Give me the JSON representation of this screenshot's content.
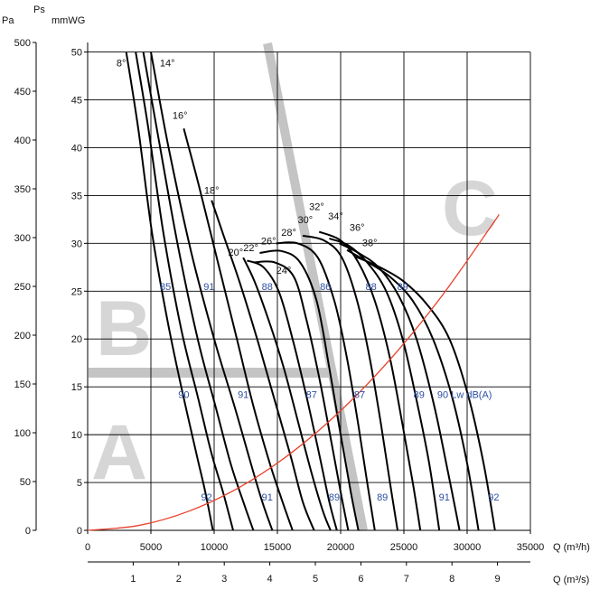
{
  "chart_data": {
    "type": "line",
    "title": "",
    "xlabel": "Q (m³/h)",
    "xlabel2": "Q (m³/s)",
    "ylabel_left": "Pa",
    "ylabel_ps": "Ps",
    "ylabel_right": "mmWG",
    "xlim": [
      0,
      35000
    ],
    "ylim_mmwg": [
      0,
      51
    ],
    "x_ticks": [
      "0",
      "5000",
      "10000",
      "15000",
      "20000",
      "25000",
      "30000",
      "35000"
    ],
    "x2_ticks": [
      "1",
      "2",
      "3",
      "4",
      "5",
      "6",
      "7",
      "8",
      "9"
    ],
    "y_ticks_pa": [
      "0",
      "50",
      "100",
      "150",
      "200",
      "250",
      "300",
      "350",
      "400",
      "450",
      "500"
    ],
    "y_ticks_mmwg": [
      "0",
      "5",
      "10",
      "15",
      "20",
      "25",
      "30",
      "35",
      "40",
      "45",
      "50"
    ],
    "grid": true,
    "colors": {
      "curve": "#000000",
      "system": "#e8402a",
      "zone": "#c4c4c4",
      "noise_label": "#2c4fa3"
    },
    "zones": [
      "A",
      "B",
      "C"
    ],
    "series": [
      {
        "name": "8°",
        "label_at": [
          2650,
          48.5
        ],
        "points": [
          [
            3050,
            50
          ],
          [
            4000,
            42
          ],
          [
            5100,
            31
          ],
          [
            6300,
            22
          ],
          [
            7400,
            15
          ],
          [
            8600,
            8
          ],
          [
            9300,
            4
          ],
          [
            9900,
            0
          ]
        ]
      },
      {
        "name": "14°",
        "label_at": [
          6300,
          48.5
        ],
        "points": [
          [
            3800,
            50
          ],
          [
            4800,
            42
          ],
          [
            6000,
            31
          ],
          [
            7400,
            21
          ],
          [
            8700,
            14
          ],
          [
            9800,
            8
          ],
          [
            10700,
            4
          ],
          [
            11500,
            0
          ]
        ]
      },
      {
        "name": "",
        "label_at": null,
        "points": [
          [
            4400,
            50
          ],
          [
            5600,
            41
          ],
          [
            7100,
            30
          ],
          [
            8700,
            20
          ],
          [
            10100,
            13
          ],
          [
            11300,
            7
          ],
          [
            12300,
            3
          ],
          [
            13100,
            0
          ]
        ]
      },
      {
        "name": "",
        "label_at": null,
        "points": [
          [
            5000,
            50
          ],
          [
            6400,
            40
          ],
          [
            8200,
            29
          ],
          [
            10000,
            20
          ],
          [
            11600,
            13
          ],
          [
            12900,
            7
          ],
          [
            13800,
            3
          ],
          [
            14600,
            0
          ]
        ]
      },
      {
        "name": "16°",
        "label_at": [
          7300,
          43
        ],
        "points": [
          [
            7600,
            42
          ],
          [
            8800,
            36
          ],
          [
            10300,
            28
          ],
          [
            11800,
            20
          ],
          [
            13100,
            13
          ],
          [
            14400,
            7
          ],
          [
            15400,
            3
          ],
          [
            16200,
            0
          ]
        ]
      },
      {
        "name": "18°",
        "label_at": [
          9800,
          35.2
        ],
        "points": [
          [
            9800,
            34.5
          ],
          [
            10700,
            31
          ],
          [
            12000,
            26
          ],
          [
            13400,
            20
          ],
          [
            14700,
            14
          ],
          [
            16000,
            8
          ],
          [
            17000,
            3
          ],
          [
            17900,
            0
          ]
        ]
      },
      {
        "name": "20°",
        "label_at": [
          11700,
          28.7
        ],
        "points": [
          [
            12300,
            28.5
          ],
          [
            13200,
            26
          ],
          [
            14300,
            22
          ],
          [
            15500,
            17
          ],
          [
            16700,
            11
          ],
          [
            17700,
            6
          ],
          [
            18600,
            2
          ],
          [
            19200,
            0
          ]
        ]
      },
      {
        "name": "22°",
        "label_at": [
          12900,
          29.2
        ],
        "points": [
          [
            12600,
            28.2
          ],
          [
            13900,
            27.5
          ],
          [
            15100,
            25
          ],
          [
            16200,
            20
          ],
          [
            17300,
            14
          ],
          [
            18300,
            8
          ],
          [
            19100,
            3
          ],
          [
            19700,
            0
          ]
        ]
      },
      {
        "name": "24°",
        "label_at": [
          15500,
          26.8
        ],
        "points": [
          [
            13100,
            28
          ],
          [
            14800,
            28
          ],
          [
            16300,
            26.5
          ],
          [
            17300,
            22
          ],
          [
            18300,
            16
          ],
          [
            19300,
            9
          ],
          [
            20000,
            4
          ],
          [
            20600,
            0
          ]
        ]
      },
      {
        "name": "26°",
        "label_at": [
          14300,
          29.9
        ],
        "points": [
          [
            13600,
            29
          ],
          [
            15300,
            29.2
          ],
          [
            16800,
            28
          ],
          [
            18100,
            24
          ],
          [
            19100,
            17
          ],
          [
            20000,
            10
          ],
          [
            20800,
            4
          ],
          [
            21400,
            0
          ]
        ]
      },
      {
        "name": "28°",
        "label_at": [
          15900,
          30.8
        ],
        "points": [
          [
            14900,
            30
          ],
          [
            16600,
            30
          ],
          [
            18200,
            28.5
          ],
          [
            19500,
            24
          ],
          [
            20500,
            18
          ],
          [
            21400,
            11
          ],
          [
            22100,
            5
          ],
          [
            22700,
            0
          ]
        ]
      },
      {
        "name": "30°",
        "label_at": [
          17200,
          32.1
        ],
        "points": [
          [
            17000,
            30.8
          ],
          [
            18700,
            30.3
          ],
          [
            20100,
            28.5
          ],
          [
            21300,
            24
          ],
          [
            22300,
            18
          ],
          [
            23200,
            11
          ],
          [
            23900,
            5
          ],
          [
            24500,
            0
          ]
        ]
      },
      {
        "name": "32°",
        "label_at": [
          18100,
          33.5
        ],
        "points": [
          [
            18300,
            31.2
          ],
          [
            20000,
            30.3
          ],
          [
            21400,
            28
          ],
          [
            22700,
            24
          ],
          [
            23900,
            18
          ],
          [
            24900,
            11
          ],
          [
            25700,
            5
          ],
          [
            26300,
            0
          ]
        ]
      },
      {
        "name": "34°",
        "label_at": [
          19600,
          32.5
        ],
        "points": [
          [
            19100,
            30.5
          ],
          [
            20600,
            29.8
          ],
          [
            22100,
            28
          ],
          [
            23600,
            25
          ],
          [
            24900,
            20
          ],
          [
            26100,
            13
          ],
          [
            27000,
            7
          ],
          [
            27800,
            0
          ]
        ]
      },
      {
        "name": "36°",
        "label_at": [
          21300,
          31.3
        ],
        "points": [
          [
            19900,
            30
          ],
          [
            21400,
            29
          ],
          [
            23000,
            27.5
          ],
          [
            24600,
            24.5
          ],
          [
            26000,
            20
          ],
          [
            27400,
            13
          ],
          [
            28500,
            6
          ],
          [
            29400,
            0
          ]
        ]
      },
      {
        "name": "38°",
        "label_at": [
          22300,
          29.7
        ],
        "points": [
          [
            20500,
            29.3
          ],
          [
            22200,
            28
          ],
          [
            23900,
            26.5
          ],
          [
            25700,
            24
          ],
          [
            27300,
            20
          ],
          [
            28800,
            14
          ],
          [
            30000,
            7
          ],
          [
            30900,
            0
          ]
        ]
      },
      {
        "name": "",
        "label_at": null,
        "points": [
          [
            21200,
            28.6
          ],
          [
            23100,
            27.5
          ],
          [
            25000,
            26
          ],
          [
            26900,
            23.5
          ],
          [
            28600,
            20
          ],
          [
            30100,
            14
          ],
          [
            31300,
            7
          ],
          [
            32200,
            0
          ]
        ]
      }
    ],
    "system_curve": [
      [
        0,
        0
      ],
      [
        4000,
        0.5
      ],
      [
        8000,
        2
      ],
      [
        12000,
        4.5
      ],
      [
        16000,
        8
      ],
      [
        20000,
        12.5
      ],
      [
        24000,
        18
      ],
      [
        28000,
        24.5
      ],
      [
        32000,
        32
      ],
      [
        32500,
        33
      ]
    ],
    "noise_labels": [
      {
        "text": "85",
        "x": 6150,
        "y": 25.5
      },
      {
        "text": "91",
        "x": 9600,
        "y": 25.5
      },
      {
        "text": "88",
        "x": 14200,
        "y": 25.5
      },
      {
        "text": "86",
        "x": 18800,
        "y": 25.5
      },
      {
        "text": "88",
        "x": 22400,
        "y": 25.5
      },
      {
        "text": "89",
        "x": 24900,
        "y": 25.5
      },
      {
        "text": "90",
        "x": 7600,
        "y": 14.2
      },
      {
        "text": "91",
        "x": 12300,
        "y": 14.2
      },
      {
        "text": "87",
        "x": 17700,
        "y": 14.2
      },
      {
        "text": "87",
        "x": 21500,
        "y": 14.2
      },
      {
        "text": "89",
        "x": 26200,
        "y": 14.2
      },
      {
        "text": "90 Lw dB(A)",
        "x": 29800,
        "y": 14.2
      },
      {
        "text": "92",
        "x": 9400,
        "y": 3.5
      },
      {
        "text": "91",
        "x": 14200,
        "y": 3.5
      },
      {
        "text": "89",
        "x": 19500,
        "y": 3.5
      },
      {
        "text": "89",
        "x": 23300,
        "y": 3.5
      },
      {
        "text": "91",
        "x": 28200,
        "y": 3.5
      },
      {
        "text": "92",
        "x": 32100,
        "y": 3.5
      }
    ]
  }
}
